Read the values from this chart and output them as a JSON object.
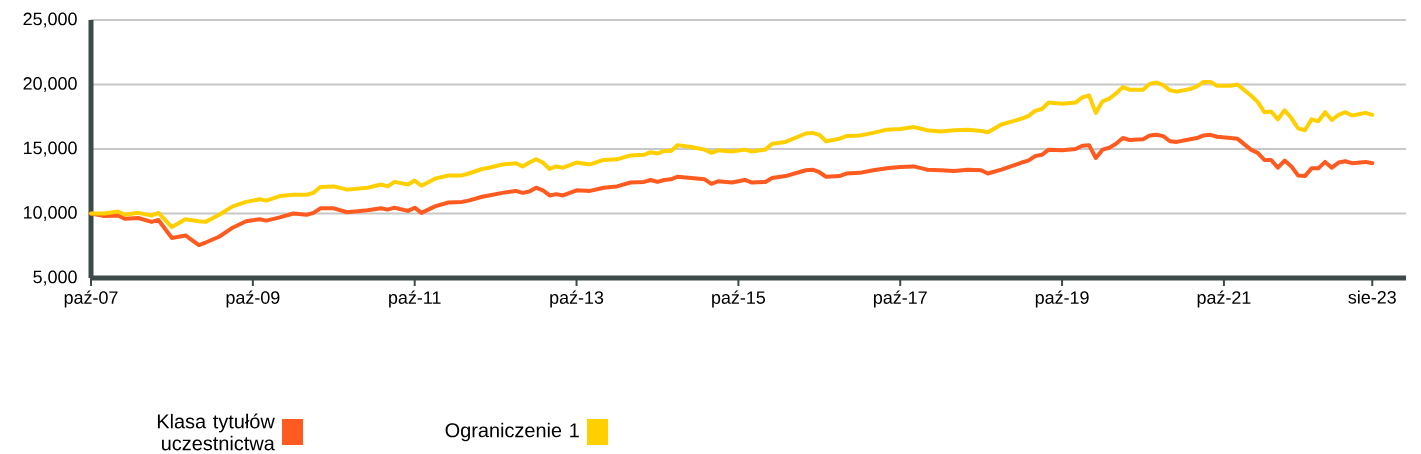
{
  "chart_data": {
    "type": "line",
    "x": [
      "2007-10",
      "2007-12",
      "2008-02",
      "2008-03",
      "2008-05",
      "2008-07",
      "2008-08",
      "2008-10",
      "2008-12",
      "2009-02",
      "2009-03",
      "2009-05",
      "2009-07",
      "2009-09",
      "2009-11",
      "2009-12",
      "2010-02",
      "2010-04",
      "2010-06",
      "2010-07",
      "2010-08",
      "2010-10",
      "2010-12",
      "2011-03",
      "2011-05",
      "2011-06",
      "2011-07",
      "2011-09",
      "2011-10",
      "2011-11",
      "2012-01",
      "2012-03",
      "2012-05",
      "2012-06",
      "2012-08",
      "2012-09",
      "2012-11",
      "2013-01",
      "2013-02",
      "2013-03",
      "2013-04",
      "2013-05",
      "2013-06",
      "2013-07",
      "2013-08",
      "2013-10",
      "2013-12",
      "2014-02",
      "2014-04",
      "2014-06",
      "2014-08",
      "2014-09",
      "2014-10",
      "2014-11",
      "2014-12",
      "2015-01",
      "2015-03",
      "2015-05",
      "2015-06",
      "2015-07",
      "2015-09",
      "2015-11",
      "2015-12",
      "2016-02",
      "2016-03",
      "2016-05",
      "2016-08",
      "2016-09",
      "2016-10",
      "2016-11",
      "2017-01",
      "2017-02",
      "2017-04",
      "2017-06",
      "2017-08",
      "2017-10",
      "2017-12",
      "2018-02",
      "2018-04",
      "2018-06",
      "2018-08",
      "2018-10",
      "2018-11",
      "2019-01",
      "2019-04",
      "2019-05",
      "2019-06",
      "2019-07",
      "2019-08",
      "2019-10",
      "2019-12",
      "2020-01",
      "2020-02",
      "2020-03",
      "2020-04",
      "2020-05",
      "2020-06",
      "2020-07",
      "2020-08",
      "2020-10",
      "2020-11",
      "2020-12",
      "2021-01",
      "2021-02",
      "2021-03",
      "2021-05",
      "2021-06",
      "2021-07",
      "2021-08",
      "2021-09",
      "2021-11",
      "2021-12",
      "2022-02",
      "2022-03",
      "2022-04",
      "2022-05",
      "2022-06",
      "2022-07",
      "2022-08",
      "2022-09",
      "2022-10",
      "2022-11",
      "2022-12",
      "2023-01",
      "2023-02",
      "2023-03",
      "2023-04",
      "2023-05",
      "2023-07",
      "2023-08"
    ],
    "series": [
      {
        "name": "Klasa tytułów uczestnictwa",
        "color": "#ff5a1f",
        "values": [
          10000,
          9800,
          9850,
          9600,
          9650,
          9350,
          9500,
          8100,
          8300,
          7550,
          7750,
          8200,
          8900,
          9400,
          9550,
          9450,
          9700,
          10000,
          9900,
          10050,
          10400,
          10400,
          10100,
          10250,
          10400,
          10300,
          10450,
          10200,
          10450,
          10050,
          10550,
          10850,
          10900,
          11000,
          11300,
          11400,
          11600,
          11750,
          11600,
          11700,
          12000,
          11800,
          11400,
          11500,
          11400,
          11800,
          11750,
          12000,
          12100,
          12400,
          12450,
          12600,
          12450,
          12600,
          12650,
          12850,
          12750,
          12650,
          12300,
          12500,
          12400,
          12600,
          12400,
          12450,
          12750,
          12900,
          13350,
          13400,
          13200,
          12850,
          12900,
          13100,
          13150,
          13350,
          13500,
          13600,
          13650,
          13400,
          13350,
          13300,
          13400,
          13350,
          13100,
          13400,
          13950,
          14100,
          14450,
          14550,
          14950,
          14900,
          15000,
          15250,
          15300,
          14300,
          14950,
          15100,
          15400,
          15850,
          15700,
          15750,
          16050,
          16100,
          16000,
          15600,
          15550,
          15750,
          15850,
          16050,
          16100,
          15950,
          15850,
          15800,
          14950,
          14700,
          14150,
          14150,
          13550,
          14100,
          13650,
          12950,
          12900,
          13500,
          13500,
          14000,
          13550,
          13950,
          14050,
          13900,
          14000,
          13900
        ]
      },
      {
        "name": "Ograniczenie 1",
        "color": "#ffcf00",
        "values": [
          10000,
          10000,
          10150,
          9900,
          10050,
          9850,
          10050,
          8950,
          9550,
          9400,
          9350,
          9900,
          10550,
          10900,
          11100,
          11000,
          11350,
          11450,
          11450,
          11600,
          12050,
          12100,
          11850,
          12000,
          12250,
          12100,
          12450,
          12250,
          12550,
          12150,
          12700,
          12950,
          12950,
          13100,
          13450,
          13550,
          13800,
          13900,
          13650,
          13950,
          14200,
          13950,
          13450,
          13650,
          13550,
          13950,
          13800,
          14150,
          14200,
          14500,
          14550,
          14750,
          14650,
          14850,
          14850,
          15300,
          15150,
          14950,
          14700,
          14900,
          14800,
          14950,
          14800,
          14950,
          15400,
          15550,
          16200,
          16250,
          16100,
          15600,
          15800,
          16000,
          16050,
          16250,
          16500,
          16550,
          16700,
          16450,
          16350,
          16450,
          16500,
          16400,
          16300,
          16900,
          17350,
          17550,
          17950,
          18100,
          18600,
          18500,
          18600,
          19000,
          19150,
          17800,
          18700,
          18900,
          19300,
          19800,
          19600,
          19600,
          20050,
          20150,
          19950,
          19550,
          19450,
          19650,
          19850,
          20200,
          20200,
          19900,
          19900,
          20000,
          19150,
          18650,
          17850,
          17900,
          17300,
          18000,
          17400,
          16600,
          16450,
          17300,
          17150,
          17850,
          17250,
          17650,
          17850,
          17600,
          17800,
          17650
        ]
      }
    ],
    "xlim": [
      "2007-10",
      "2024-01"
    ],
    "xticks": [
      {
        "value": "2007-10",
        "label": "paź-07"
      },
      {
        "value": "2009-10",
        "label": "paź-09"
      },
      {
        "value": "2011-10",
        "label": "paź-11"
      },
      {
        "value": "2013-10",
        "label": "paź-13"
      },
      {
        "value": "2015-10",
        "label": "paź-15"
      },
      {
        "value": "2017-10",
        "label": "paź-17"
      },
      {
        "value": "2019-10",
        "label": "paź-19"
      },
      {
        "value": "2021-10",
        "label": "paź-21"
      },
      {
        "value": "2023-08",
        "label": "sie-23"
      }
    ],
    "ylim": [
      5000,
      25000
    ],
    "yticks": [
      {
        "value": 5000,
        "label": "5,000"
      },
      {
        "value": 10000,
        "label": "10,000"
      },
      {
        "value": 15000,
        "label": "15,000"
      },
      {
        "value": 20000,
        "label": "20,000"
      },
      {
        "value": 25000,
        "label": "25,000"
      }
    ],
    "grid": "y",
    "legend": "bottom",
    "marker": "none",
    "line_style": "solid"
  }
}
